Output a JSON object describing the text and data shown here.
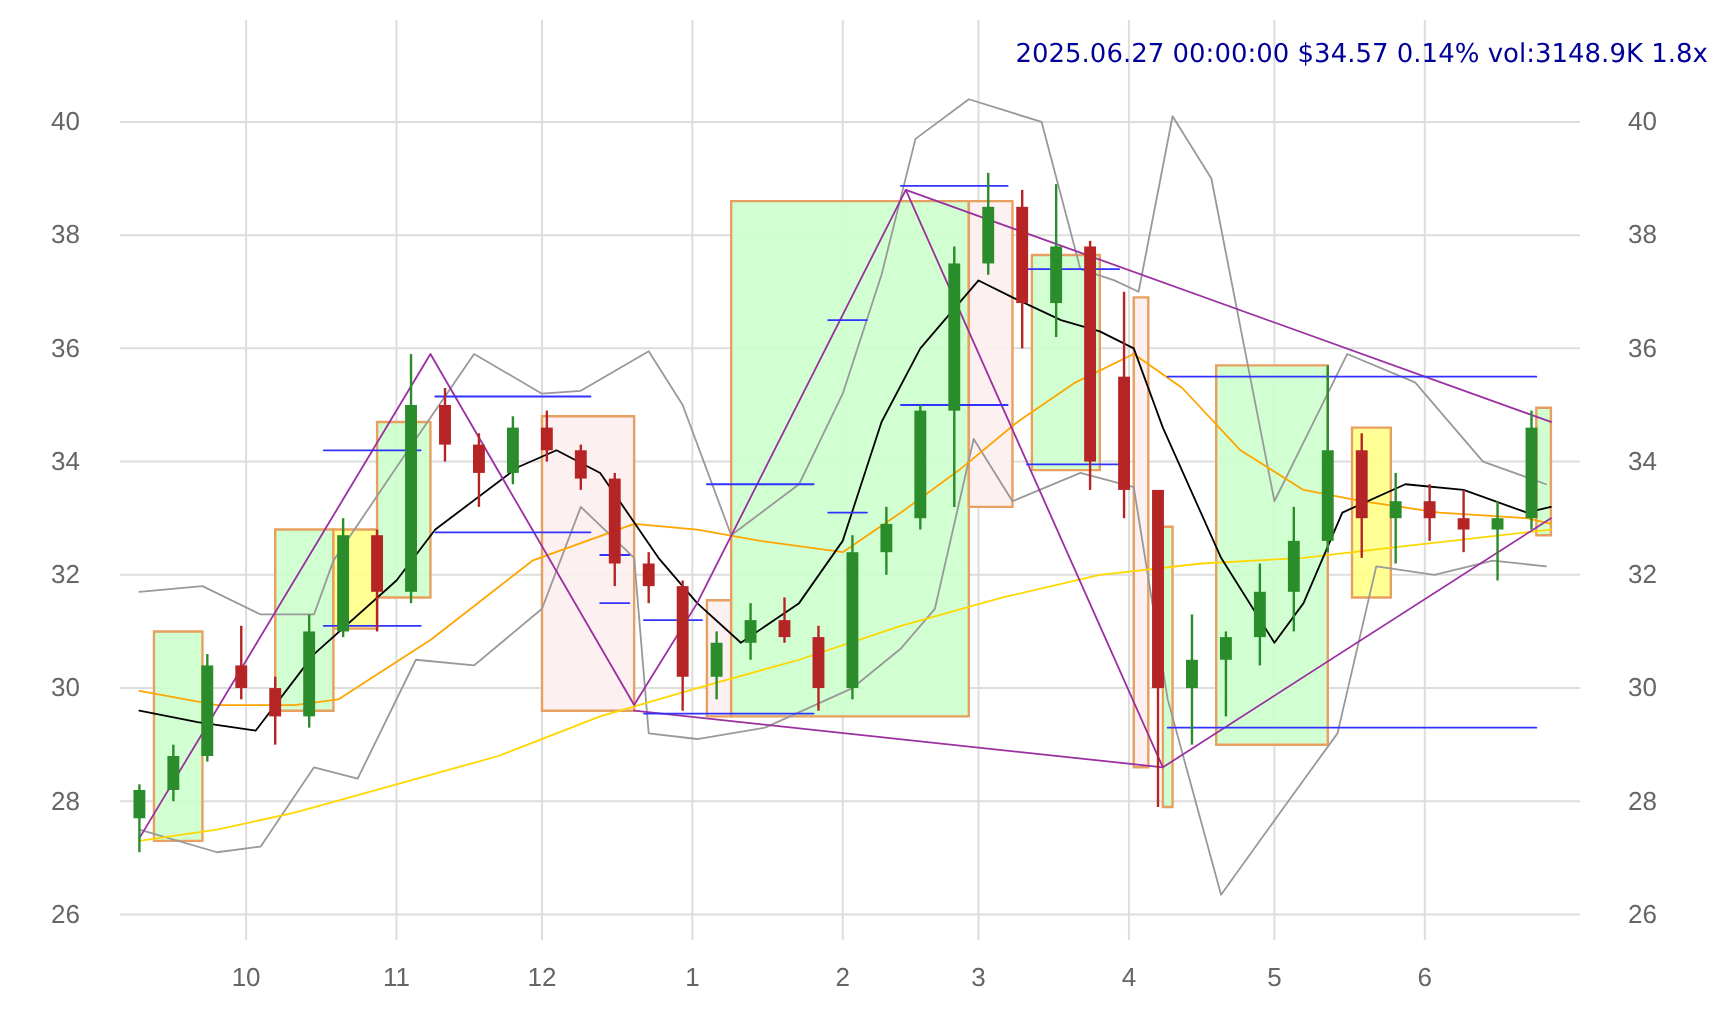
{
  "chart_data": {
    "type": "candlestick",
    "title": "2025.06.27 00:00:00 $34.57 0.14% vol:3148.9K 1.8x",
    "xlim": [
      "2024-09-05",
      "2025-07-03"
    ],
    "xticks": [
      {
        "value": "2024-10-01",
        "label": "10"
      },
      {
        "value": "2024-11-01",
        "label": "11"
      },
      {
        "value": "2024-12-01",
        "label": "12"
      },
      {
        "value": "2025-01-01",
        "label": "1"
      },
      {
        "value": "2025-02-01",
        "label": "2"
      },
      {
        "value": "2025-03-01",
        "label": "3"
      },
      {
        "value": "2025-04-01",
        "label": "4"
      },
      {
        "value": "2025-05-01",
        "label": "5"
      },
      {
        "value": "2025-06-01",
        "label": "6"
      }
    ],
    "ylim": [
      25.55,
      41.8
    ],
    "yticks": [
      26,
      28,
      30,
      32,
      34,
      36,
      38,
      40
    ],
    "y2lim": [
      25.55,
      41.8
    ],
    "y2ticks": [
      26,
      28,
      30,
      32,
      34,
      36,
      38,
      40
    ],
    "grid": true,
    "x": [
      "2024-09-09",
      "2024-09-16",
      "2024-09-23",
      "2024-09-30",
      "2024-10-07",
      "2024-10-14",
      "2024-10-21",
      "2024-10-28",
      "2024-11-04",
      "2024-11-11",
      "2024-11-18",
      "2024-11-25",
      "2024-12-02",
      "2024-12-09",
      "2024-12-16",
      "2024-12-23",
      "2024-12-30",
      "2025-01-06",
      "2025-01-13",
      "2025-01-20",
      "2025-01-27",
      "2025-02-03",
      "2025-02-10",
      "2025-02-17",
      "2025-02-24",
      "2025-03-03",
      "2025-03-10",
      "2025-03-17",
      "2025-03-24",
      "2025-03-31",
      "2025-04-07",
      "2025-04-14",
      "2025-04-21",
      "2025-04-28",
      "2025-05-05",
      "2025-05-12",
      "2025-05-19",
      "2025-05-26",
      "2025-06-02",
      "2025-06-09",
      "2025-06-16",
      "2025-06-23"
    ],
    "ohlc": [
      [
        27.7,
        28.3,
        27.1,
        28.2
      ],
      [
        28.2,
        29.0,
        28.0,
        28.8
      ],
      [
        28.8,
        30.6,
        28.7,
        30.4
      ],
      [
        30.4,
        31.1,
        29.8,
        30.0
      ],
      [
        30.0,
        30.2,
        29.0,
        29.5
      ],
      [
        29.5,
        31.3,
        29.3,
        31.0
      ],
      [
        31.0,
        33.0,
        30.9,
        32.7
      ],
      [
        32.7,
        32.8,
        31.0,
        31.7
      ],
      [
        31.7,
        35.9,
        31.5,
        35.0
      ],
      [
        35.0,
        35.3,
        34.0,
        34.3
      ],
      [
        34.3,
        34.5,
        33.2,
        33.8
      ],
      [
        33.8,
        34.8,
        33.6,
        34.6
      ],
      [
        34.6,
        34.9,
        34.0,
        34.2
      ],
      [
        34.2,
        34.3,
        33.5,
        33.7
      ],
      [
        33.7,
        33.8,
        31.8,
        32.2
      ],
      [
        32.2,
        32.4,
        31.5,
        31.8
      ],
      [
        31.8,
        31.9,
        29.6,
        30.2
      ],
      [
        30.2,
        31.0,
        29.8,
        30.8
      ],
      [
        30.8,
        31.5,
        30.5,
        31.2
      ],
      [
        31.2,
        31.6,
        30.8,
        30.9
      ],
      [
        30.9,
        31.1,
        29.6,
        30.0
      ],
      [
        30.0,
        32.7,
        29.8,
        32.4
      ],
      [
        32.4,
        33.2,
        32.0,
        32.9
      ],
      [
        33.0,
        35.0,
        32.8,
        34.9
      ],
      [
        34.9,
        37.8,
        33.2,
        37.5
      ],
      [
        37.5,
        39.1,
        37.3,
        38.5
      ],
      [
        38.5,
        38.8,
        36.0,
        36.8
      ],
      [
        36.8,
        38.9,
        36.2,
        37.8
      ],
      [
        37.8,
        37.9,
        33.5,
        34.0
      ],
      [
        35.5,
        37.0,
        33.0,
        33.5
      ],
      [
        33.5,
        33.5,
        27.9,
        30.0
      ],
      [
        30.0,
        31.3,
        29.0,
        30.5
      ],
      [
        30.5,
        31.0,
        29.5,
        30.9
      ],
      [
        30.9,
        32.2,
        30.4,
        31.7
      ],
      [
        31.7,
        33.2,
        31.0,
        32.6
      ],
      [
        32.6,
        35.7,
        32.4,
        34.2
      ],
      [
        34.2,
        34.5,
        32.3,
        33.0
      ],
      [
        33.0,
        33.8,
        32.2,
        33.3
      ],
      [
        33.3,
        33.6,
        32.6,
        33.0
      ],
      [
        33.0,
        33.5,
        32.4,
        32.8
      ],
      [
        32.8,
        33.3,
        31.9,
        33.0
      ],
      [
        33.0,
        34.9,
        32.8,
        34.6
      ]
    ],
    "series": [
      {
        "type": "line",
        "color": "#ccffcc",
        "x": [
          "2024-09-12",
          "2024-09-22"
        ],
        "lower": [
          27.3,
          27.3
        ],
        "upper": [
          31.0,
          31.0
        ],
        "values": [
          null,
          null
        ]
      },
      {
        "type": "line",
        "color": "#ccffcc",
        "x": [
          "2024-10-07",
          "2024-10-19"
        ],
        "lower": [
          29.6,
          29.6
        ],
        "upper": [
          32.8,
          32.8
        ],
        "values": [
          null,
          null
        ]
      },
      {
        "type": "line",
        "color": "#ffff88",
        "x": [
          "2024-10-19",
          "2024-10-28"
        ],
        "lower": [
          31.05,
          31.05
        ],
        "upper": [
          32.8,
          32.8
        ],
        "values": [
          null,
          null
        ]
      },
      {
        "type": "line",
        "color": "#ccffcc",
        "x": [
          "2024-10-28",
          "2024-11-08"
        ],
        "lower": [
          31.6,
          31.6
        ],
        "upper": [
          34.7,
          34.7
        ],
        "values": [
          null,
          null
        ]
      },
      {
        "type": "line",
        "color": "#fdeeee",
        "x": [
          "2024-12-01",
          "2024-12-20"
        ],
        "lower": [
          29.6,
          29.6
        ],
        "upper": [
          34.8,
          34.8
        ],
        "values": [
          null,
          null
        ]
      },
      {
        "type": "line",
        "color": "#fdeeee",
        "x": [
          "2025-01-04",
          "2025-01-09"
        ],
        "lower": [
          29.5,
          29.5
        ],
        "upper": [
          31.55,
          31.55
        ],
        "values": [
          null,
          null
        ]
      },
      {
        "type": "line",
        "color": "#ccffcc",
        "x": [
          "2025-01-09",
          "2025-02-27"
        ],
        "lower": [
          29.5,
          29.5
        ],
        "upper": [
          38.6,
          38.6
        ],
        "values": [
          null,
          null
        ]
      },
      {
        "type": "line",
        "color": "#fdeeee",
        "x": [
          "2025-02-27",
          "2025-03-08"
        ],
        "lower": [
          33.2,
          33.2
        ],
        "upper": [
          38.6,
          38.6
        ],
        "values": [
          null,
          null
        ]
      },
      {
        "type": "line",
        "color": "#ccffcc",
        "x": [
          "2025-03-12",
          "2025-03-26"
        ],
        "lower": [
          33.85,
          33.85
        ],
        "upper": [
          37.65,
          37.65
        ],
        "values": [
          null,
          null
        ]
      },
      {
        "type": "line",
        "color": "#fdeeee",
        "x": [
          "2025-04-02",
          "2025-04-05"
        ],
        "lower": [
          28.6,
          28.6
        ],
        "upper": [
          36.9,
          36.9
        ],
        "values": [
          null,
          null
        ]
      },
      {
        "type": "line",
        "color": "#ccffcc",
        "x": [
          "2025-04-08",
          "2025-04-10"
        ],
        "lower": [
          27.9,
          27.9
        ],
        "upper": [
          32.85,
          32.85
        ],
        "values": [
          null,
          null
        ]
      },
      {
        "type": "line",
        "color": "#ccffcc",
        "x": [
          "2025-04-19",
          "2025-05-12"
        ],
        "lower": [
          29.0,
          29.0
        ],
        "upper": [
          35.7,
          35.7
        ],
        "values": [
          null,
          null
        ]
      },
      {
        "type": "line",
        "color": "#ffff88",
        "x": [
          "2025-05-17",
          "2025-05-25"
        ],
        "lower": [
          31.6,
          31.6
        ],
        "upper": [
          34.6,
          34.6
        ],
        "values": [
          null,
          null
        ]
      },
      {
        "type": "line",
        "color": "#ccffcc",
        "x": [
          "2025-06-24",
          "2025-06-27"
        ],
        "lower": [
          32.7,
          32.7
        ],
        "upper": [
          34.95,
          34.95
        ],
        "values": [
          null,
          null
        ]
      },
      {
        "type": "line",
        "color": "#999999",
        "x": [
          "2024-09-09",
          "2024-09-22",
          "2024-10-04",
          "2024-10-15",
          "2024-10-19",
          "2024-11-01",
          "2024-11-17",
          "2024-12-01",
          "2024-12-09",
          "2024-12-23",
          "2024-12-30",
          "2025-01-09",
          "2025-01-23",
          "2025-02-01",
          "2025-02-09",
          "2025-02-16",
          "2025-02-27",
          "2025-03-14",
          "2025-03-22",
          "2025-03-29",
          "2025-04-03",
          "2025-04-10",
          "2025-04-18",
          "2025-05-01",
          "2025-05-16",
          "2025-05-30",
          "2025-06-13",
          "2025-06-26"
        ],
        "values": [
          31.7,
          31.8,
          31.3,
          31.3,
          32.25,
          33.9,
          35.9,
          35.2,
          35.25,
          35.95,
          35.0,
          32.7,
          33.6,
          35.2,
          37.3,
          39.7,
          40.4,
          40.0,
          37.4,
          37.2,
          37.0,
          40.1,
          39.0,
          33.3,
          35.9,
          35.4,
          34.0,
          33.6
        ]
      },
      {
        "type": "line",
        "color": "#999999",
        "x": [
          "2024-09-09",
          "2024-09-25",
          "2024-10-04",
          "2024-10-15",
          "2024-10-24",
          "2024-11-05",
          "2024-11-17",
          "2024-12-01",
          "2024-12-09",
          "2024-12-20",
          "2024-12-23",
          "2025-01-02",
          "2025-01-16",
          "2025-02-03",
          "2025-02-13",
          "2025-02-20",
          "2025-02-28",
          "2025-03-08",
          "2025-03-22",
          "2025-04-02",
          "2025-04-09",
          "2025-04-20",
          "2025-05-03",
          "2025-05-14",
          "2025-05-22",
          "2025-06-03",
          "2025-06-15",
          "2025-06-26"
        ],
        "values": [
          27.5,
          27.1,
          27.2,
          28.6,
          28.4,
          30.5,
          30.4,
          31.4,
          33.2,
          32.3,
          29.2,
          29.1,
          29.3,
          30.0,
          30.7,
          31.4,
          34.4,
          33.3,
          33.8,
          33.55,
          29.8,
          26.35,
          27.9,
          29.2,
          32.15,
          32.0,
          32.25,
          32.15
        ]
      },
      {
        "type": "line",
        "color": "#ffd700",
        "x": [
          "2024-09-09",
          "2024-09-25",
          "2024-10-11",
          "2024-11-01",
          "2024-11-22",
          "2024-12-13",
          "2025-01-02",
          "2025-01-23",
          "2025-02-13",
          "2025-03-06",
          "2025-03-26",
          "2025-04-16",
          "2025-05-07",
          "2025-05-27",
          "2025-06-27"
        ],
        "values": [
          27.3,
          27.5,
          27.8,
          28.3,
          28.8,
          29.5,
          30.0,
          30.5,
          31.1,
          31.6,
          32.0,
          32.2,
          32.3,
          32.5,
          32.8
        ]
      },
      {
        "type": "line",
        "color": "#ffa500",
        "x": [
          "2024-09-09",
          "2024-09-25",
          "2024-10-11",
          "2024-10-20",
          "2024-11-08",
          "2024-11-29",
          "2024-12-20",
          "2025-01-02",
          "2025-01-15",
          "2025-02-01",
          "2025-02-13",
          "2025-02-25",
          "2025-03-09",
          "2025-03-21",
          "2025-04-02",
          "2025-04-12",
          "2025-04-24",
          "2025-05-07",
          "2025-05-19",
          "2025-06-04",
          "2025-06-22",
          "2025-06-27"
        ],
        "values": [
          29.95,
          29.7,
          29.7,
          29.8,
          30.85,
          32.25,
          32.9,
          32.8,
          32.6,
          32.4,
          33.1,
          33.85,
          34.7,
          35.4,
          35.9,
          35.3,
          34.2,
          33.5,
          33.3,
          33.1,
          33.0,
          32.9
        ]
      },
      {
        "type": "line",
        "color": "#000000",
        "x": [
          "2024-09-09",
          "2024-09-21",
          "2024-10-03",
          "2024-10-15",
          "2024-11-01",
          "2024-11-09",
          "2024-11-26",
          "2024-12-04",
          "2024-12-13",
          "2024-12-25",
          "2025-01-02",
          "2025-01-11",
          "2025-01-23",
          "2025-02-01",
          "2025-02-09",
          "2025-02-17",
          "2025-03-01",
          "2025-03-08",
          "2025-03-18",
          "2025-03-26",
          "2025-04-02",
          "2025-04-08",
          "2025-04-20",
          "2025-05-01",
          "2025-05-07",
          "2025-05-15",
          "2025-05-28",
          "2025-06-09",
          "2025-06-22",
          "2025-06-27"
        ],
        "values": [
          29.6,
          29.4,
          29.25,
          30.6,
          31.9,
          32.8,
          33.9,
          34.2,
          33.8,
          32.3,
          31.5,
          30.8,
          31.5,
          32.6,
          34.7,
          36.0,
          37.2,
          36.9,
          36.5,
          36.3,
          36.0,
          34.6,
          32.3,
          30.8,
          31.5,
          33.1,
          33.6,
          33.5,
          33.1,
          33.2
        ]
      },
      {
        "type": "line",
        "color": "#9b30a0",
        "x": [
          "2024-09-09",
          "2024-11-08",
          "2024-12-20",
          "2025-01-02",
          "2025-02-14",
          "2025-04-08",
          "2025-06-27"
        ],
        "values": [
          27.35,
          35.9,
          29.7,
          31.5,
          38.8,
          28.6,
          33.0
        ]
      },
      {
        "type": "line",
        "color": "#9b30a0",
        "x": [
          "2025-02-14",
          "2025-06-27"
        ],
        "values": [
          38.8,
          34.7
        ]
      },
      {
        "type": "line",
        "color": "#9b30a0",
        "x": [
          "2024-12-20",
          "2025-04-08"
        ],
        "values": [
          29.6,
          28.6
        ]
      },
      {
        "type": "line",
        "color": "#3333ff",
        "x": [
          "2024-10-17",
          "2024-11-06"
        ],
        "values": [
          34.2,
          34.2
        ]
      },
      {
        "type": "line",
        "color": "#3333ff",
        "x": [
          "2024-10-17",
          "2024-11-06"
        ],
        "values": [
          31.1,
          31.1
        ]
      },
      {
        "type": "line",
        "color": "#3333ff",
        "x": [
          "2024-11-09",
          "2024-12-11"
        ],
        "values": [
          35.15,
          35.15
        ]
      },
      {
        "type": "line",
        "color": "#3333ff",
        "x": [
          "2024-11-09",
          "2024-12-11"
        ],
        "values": [
          32.75,
          32.75
        ]
      },
      {
        "type": "line",
        "color": "#3333ff",
        "x": [
          "2024-12-13",
          "2024-12-19"
        ],
        "values": [
          32.35,
          32.35
        ]
      },
      {
        "type": "line",
        "color": "#3333ff",
        "x": [
          "2024-12-13",
          "2024-12-19"
        ],
        "values": [
          31.5,
          31.5
        ]
      },
      {
        "type": "line",
        "color": "#3333ff",
        "x": [
          "2024-12-22",
          "2025-01-03"
        ],
        "values": [
          31.2,
          31.2
        ]
      },
      {
        "type": "line",
        "color": "#3333ff",
        "x": [
          "2024-12-22",
          "2025-01-26"
        ],
        "values": [
          29.55,
          29.55
        ]
      },
      {
        "type": "line",
        "color": "#3333ff",
        "x": [
          "2025-01-04",
          "2025-01-26"
        ],
        "values": [
          33.6,
          33.6
        ]
      },
      {
        "type": "line",
        "color": "#3333ff",
        "x": [
          "2025-01-29",
          "2025-02-06"
        ],
        "values": [
          36.5,
          36.5
        ]
      },
      {
        "type": "line",
        "color": "#3333ff",
        "x": [
          "2025-01-29",
          "2025-02-06"
        ],
        "values": [
          33.1,
          33.1
        ]
      },
      {
        "type": "line",
        "color": "#3333ff",
        "x": [
          "2025-02-13",
          "2025-03-07"
        ],
        "values": [
          35.0,
          35.0
        ]
      },
      {
        "type": "line",
        "color": "#3333ff",
        "x": [
          "2025-02-13",
          "2025-03-07"
        ],
        "values": [
          38.87,
          38.87
        ]
      },
      {
        "type": "line",
        "color": "#3333ff",
        "x": [
          "2025-03-11",
          "2025-03-30"
        ],
        "values": [
          37.4,
          37.4
        ]
      },
      {
        "type": "line",
        "color": "#3333ff",
        "x": [
          "2025-03-11",
          "2025-03-30"
        ],
        "values": [
          33.95,
          33.95
        ]
      },
      {
        "type": "line",
        "color": "#3333ff",
        "x": [
          "2025-04-09",
          "2025-06-24"
        ],
        "values": [
          35.5,
          35.5
        ]
      },
      {
        "type": "line",
        "color": "#3333ff",
        "x": [
          "2025-04-09",
          "2025-06-24"
        ],
        "values": [
          29.3,
          29.3
        ]
      }
    ]
  }
}
